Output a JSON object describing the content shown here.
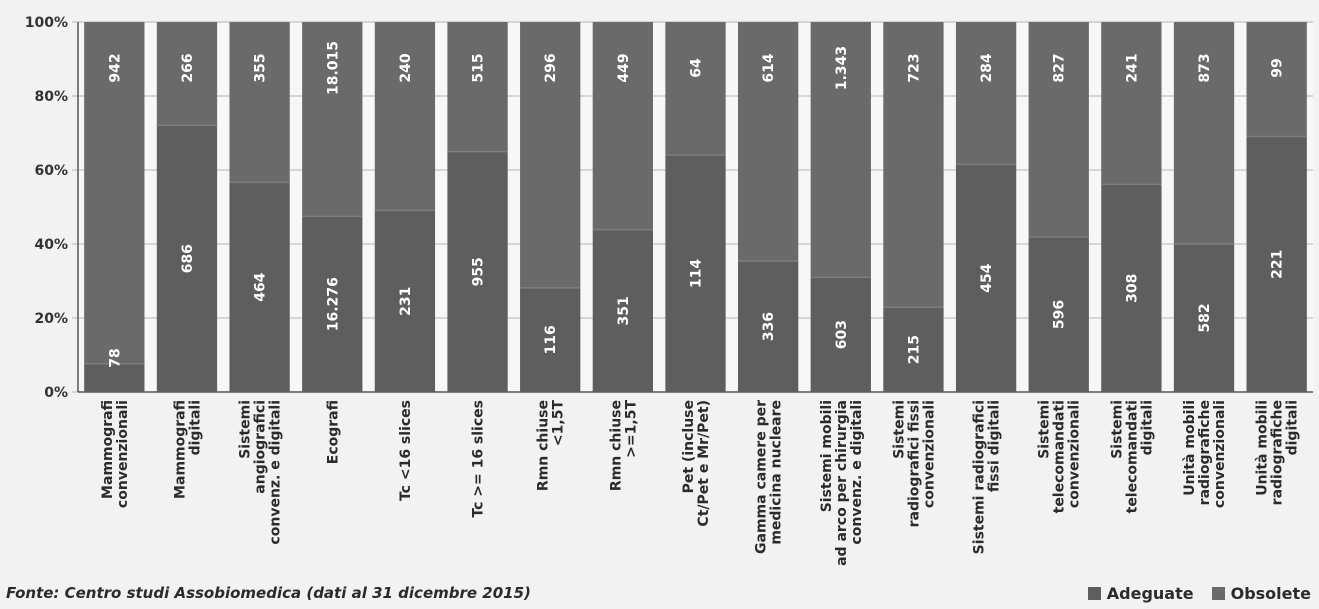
{
  "chart_data": {
    "type": "bar",
    "stacked": true,
    "normalized": true,
    "title": "",
    "xlabel": "",
    "ylabel": "",
    "ylim": [
      0,
      100
    ],
    "yticks": [
      "0%",
      "20%",
      "40%",
      "60%",
      "80%",
      "100%"
    ],
    "categories": [
      [
        "Mammografi",
        "convenzionali"
      ],
      [
        "Mammografi",
        "digitali"
      ],
      [
        "Sistemi",
        "angiografici",
        "convenz. e digitali"
      ],
      [
        "Ecografi"
      ],
      [
        "Tc <16 slices"
      ],
      [
        "Tc >= 16 slices"
      ],
      [
        "Rmn chiuse",
        "<1,5T"
      ],
      [
        "Rmn chiuse",
        ">=1,5T"
      ],
      [
        "Pet (incluse",
        "Ct/Pet e Mr/Pet)"
      ],
      [
        "Gamma camere per",
        "medicina nucleare"
      ],
      [
        "Sistemi mobili",
        "ad arco per chirurgia",
        "convenz. e digitali"
      ],
      [
        "Sistemi",
        "radiografici fissi",
        "convenzionali"
      ],
      [
        "Sistemi radiografici",
        "fissi digitali"
      ],
      [
        "Sistemi",
        "telecomandati",
        "convenzionali"
      ],
      [
        "Sistemi",
        "telecomandati",
        "digitali"
      ],
      [
        "Unità mobili",
        "radiografiche",
        "convenzionali"
      ],
      [
        "Unità mobili",
        "radiografiche",
        "digitali"
      ]
    ],
    "series": [
      {
        "name": "Adeguate",
        "values": [
          78,
          686,
          464,
          16276,
          231,
          955,
          116,
          351,
          114,
          336,
          603,
          215,
          454,
          596,
          308,
          582,
          221
        ],
        "labels": [
          "78",
          "686",
          "464",
          "16.276",
          "231",
          "955",
          "116",
          "351",
          "114",
          "336",
          "603",
          "215",
          "454",
          "596",
          "308",
          "582",
          "221"
        ]
      },
      {
        "name": "Obsolete",
        "values": [
          942,
          266,
          355,
          18015,
          240,
          515,
          296,
          449,
          64,
          614,
          1343,
          723,
          284,
          827,
          241,
          873,
          99
        ],
        "labels": [
          "942",
          "266",
          "355",
          "18.015",
          "240",
          "515",
          "296",
          "449",
          "64",
          "614",
          "1.343",
          "723",
          "284",
          "827",
          "241",
          "873",
          "99"
        ]
      }
    ],
    "colors": {
      "adeguate": "#5e5e5e",
      "obsolete": "#6a6a6a",
      "separator": "#7d7d7d"
    },
    "legend": {
      "position": "bottom-right"
    },
    "grid": true
  },
  "source_note": "Fonte: Centro studi Assobiomedica (dati al 31 dicembre 2015)"
}
